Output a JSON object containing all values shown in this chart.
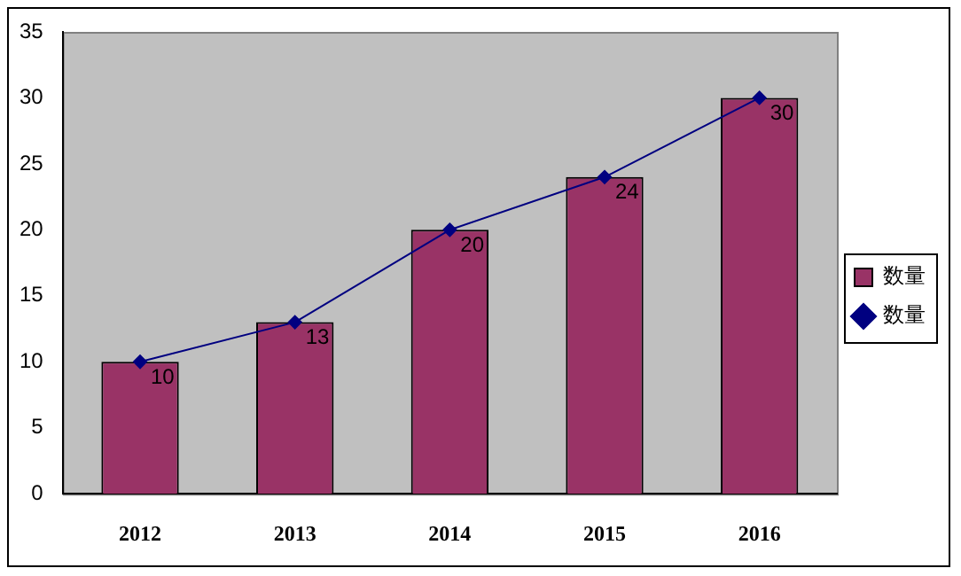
{
  "chart_data": {
    "type": "bar",
    "categories": [
      "2012",
      "2013",
      "2014",
      "2015",
      "2016"
    ],
    "series": [
      {
        "name": "数量",
        "color": "#993366",
        "values": [
          10,
          13,
          20,
          24,
          30
        ]
      },
      {
        "name": "数量",
        "type": "line",
        "color": "#000080",
        "values": [
          10,
          13,
          20,
          24,
          30
        ],
        "value_labels": [
          "10",
          "13",
          "20",
          "24",
          "30"
        ]
      }
    ],
    "ylim": [
      0,
      35
    ],
    "yticks": [
      0,
      5,
      10,
      15,
      20,
      25,
      30,
      35
    ],
    "grid": false,
    "legend": "right",
    "marker": "diamond",
    "line_style": "solid"
  }
}
